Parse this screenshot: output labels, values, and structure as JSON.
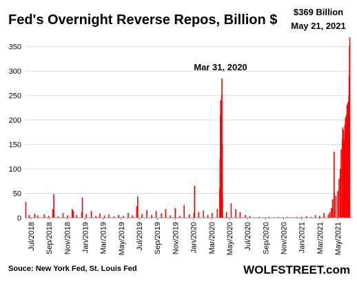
{
  "chart_data": {
    "type": "bar",
    "title": "Fed's Overnight Reverse Repos, Billion $",
    "xlabel": "",
    "ylabel": "",
    "ylim": [
      0,
      375
    ],
    "yticks": [
      0,
      50,
      100,
      150,
      200,
      250,
      300,
      350
    ],
    "grid": "horizontal",
    "bar_color": "#ff0000",
    "x_range": [
      "2018-07-01",
      "2021-05-31"
    ],
    "x_tick_labels": [
      "Jul/2018",
      "Sep/2018",
      "Nov/2018",
      "Jan/2019",
      "Mar/2019",
      "May/2019",
      "Jul/2019",
      "Sep/2019",
      "Nov/2019",
      "Jan/2020",
      "Mar/2020",
      "May/2020",
      "Jul/2020",
      "Sep/2020",
      "Nov/2020",
      "Jan/2021",
      "Mar/2021",
      "May/2021"
    ],
    "series": [
      {
        "values": [
          [
            "2018-07-02",
            33
          ],
          [
            "2018-07-13",
            6
          ],
          [
            "2018-07-31",
            8
          ],
          [
            "2018-08-10",
            5
          ],
          [
            "2018-08-31",
            7
          ],
          [
            "2018-09-14",
            4
          ],
          [
            "2018-09-28",
            18
          ],
          [
            "2018-10-01",
            48
          ],
          [
            "2018-10-15",
            3
          ],
          [
            "2018-10-31",
            10
          ],
          [
            "2018-11-15",
            5
          ],
          [
            "2018-11-30",
            18
          ],
          [
            "2018-12-03",
            15
          ],
          [
            "2018-12-14",
            6
          ],
          [
            "2018-12-31",
            12
          ],
          [
            "2019-01-02",
            42
          ],
          [
            "2019-01-15",
            8
          ],
          [
            "2019-01-31",
            14
          ],
          [
            "2019-02-15",
            4
          ],
          [
            "2019-02-28",
            9
          ],
          [
            "2019-03-15",
            5
          ],
          [
            "2019-03-29",
            7
          ],
          [
            "2019-04-15",
            3
          ],
          [
            "2019-04-30",
            6
          ],
          [
            "2019-05-15",
            4
          ],
          [
            "2019-05-31",
            10
          ],
          [
            "2019-06-14",
            5
          ],
          [
            "2019-06-28",
            24
          ],
          [
            "2019-07-01",
            44
          ],
          [
            "2019-07-15",
            8
          ],
          [
            "2019-07-31",
            16
          ],
          [
            "2019-08-15",
            6
          ],
          [
            "2019-08-30",
            14
          ],
          [
            "2019-09-16",
            9
          ],
          [
            "2019-09-30",
            18
          ],
          [
            "2019-10-15",
            5
          ],
          [
            "2019-10-31",
            20
          ],
          [
            "2019-11-15",
            4
          ],
          [
            "2019-11-29",
            26
          ],
          [
            "2019-12-16",
            7
          ],
          [
            "2019-12-31",
            10
          ],
          [
            "2020-01-02",
            65
          ],
          [
            "2020-01-15",
            12
          ],
          [
            "2020-01-31",
            15
          ],
          [
            "2020-02-14",
            6
          ],
          [
            "2020-02-28",
            10
          ],
          [
            "2020-03-16",
            18
          ],
          [
            "2020-03-24",
            60
          ],
          [
            "2020-03-25",
            120
          ],
          [
            "2020-03-26",
            210
          ],
          [
            "2020-03-27",
            240
          ],
          [
            "2020-03-30",
            250
          ],
          [
            "2020-03-31",
            285
          ],
          [
            "2020-04-01",
            150
          ],
          [
            "2020-04-02",
            40
          ],
          [
            "2020-04-15",
            12
          ],
          [
            "2020-04-30",
            30
          ],
          [
            "2020-05-15",
            18
          ],
          [
            "2020-05-29",
            12
          ],
          [
            "2020-06-15",
            6
          ],
          [
            "2020-06-30",
            4
          ],
          [
            "2020-07-15",
            1
          ],
          [
            "2020-07-31",
            2
          ],
          [
            "2020-08-14",
            1
          ],
          [
            "2020-08-31",
            2
          ],
          [
            "2020-09-15",
            1
          ],
          [
            "2020-09-30",
            2
          ],
          [
            "2020-10-15",
            1
          ],
          [
            "2020-10-30",
            2
          ],
          [
            "2020-11-16",
            1
          ],
          [
            "2020-11-30",
            2
          ],
          [
            "2020-12-15",
            2
          ],
          [
            "2020-12-31",
            4
          ],
          [
            "2021-01-15",
            2
          ],
          [
            "2021-01-29",
            6
          ],
          [
            "2021-02-12",
            4
          ],
          [
            "2021-02-26",
            10
          ],
          [
            "2021-03-12",
            7
          ],
          [
            "2021-03-17",
            12
          ],
          [
            "2021-03-22",
            20
          ],
          [
            "2021-03-26",
            38
          ],
          [
            "2021-03-31",
            135
          ],
          [
            "2021-04-01",
            50
          ],
          [
            "2021-04-06",
            45
          ],
          [
            "2021-04-12",
            55
          ],
          [
            "2021-04-16",
            80
          ],
          [
            "2021-04-20",
            100
          ],
          [
            "2021-04-23",
            140
          ],
          [
            "2021-04-27",
            160
          ],
          [
            "2021-04-28",
            185
          ],
          [
            "2021-04-30",
            180
          ],
          [
            "2021-05-03",
            160
          ],
          [
            "2021-05-05",
            190
          ],
          [
            "2021-05-07",
            205
          ],
          [
            "2021-05-10",
            210
          ],
          [
            "2021-05-12",
            230
          ],
          [
            "2021-05-14",
            235
          ],
          [
            "2021-05-17",
            240
          ],
          [
            "2021-05-18",
            250
          ],
          [
            "2021-05-19",
            290
          ],
          [
            "2021-05-20",
            351
          ],
          [
            "2021-05-21",
            369
          ]
        ]
      }
    ],
    "annotations": [
      {
        "label": "Mar 31, 2020"
      },
      {
        "label": "$369 Billion"
      },
      {
        "label": "May 21, 2021"
      }
    ],
    "source": "Souce: New York Fed, St. Louis Fed",
    "brand": "WOLFSTREET.com"
  }
}
